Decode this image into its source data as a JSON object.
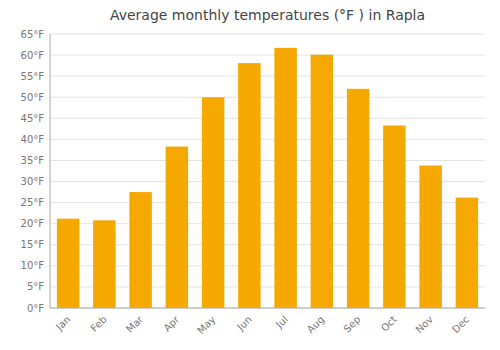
{
  "chart_data": {
    "type": "bar",
    "title": "Average monthly temperatures (°F ) in Rapla",
    "categories": [
      "Jan",
      "Feb",
      "Mar",
      "Apr",
      "May",
      "Jun",
      "Jul",
      "Aug",
      "Sep",
      "Oct",
      "Nov",
      "Dec"
    ],
    "values": [
      21.2,
      20.8,
      27.5,
      38.3,
      50.0,
      58.1,
      61.7,
      60.1,
      52.0,
      43.3,
      33.8,
      26.2
    ],
    "color": "#F5A800",
    "ylim": [
      0,
      65
    ],
    "yticks": [
      {
        "value": 0,
        "label": "0°F"
      },
      {
        "value": 5,
        "label": "5°F"
      },
      {
        "value": 10,
        "label": "10°F"
      },
      {
        "value": 15,
        "label": "15°F"
      },
      {
        "value": 20,
        "label": "20°F"
      },
      {
        "value": 25,
        "label": "25°F"
      },
      {
        "value": 30,
        "label": "30°F"
      },
      {
        "value": 35,
        "label": "35°F"
      },
      {
        "value": 40,
        "label": "40°F"
      },
      {
        "value": 45,
        "label": "45°F"
      },
      {
        "value": 50,
        "label": "50°F"
      },
      {
        "value": 55,
        "label": "55°F"
      },
      {
        "value": 60,
        "label": "60°F"
      },
      {
        "value": 65,
        "label": "65°F"
      }
    ],
    "grid": true
  }
}
